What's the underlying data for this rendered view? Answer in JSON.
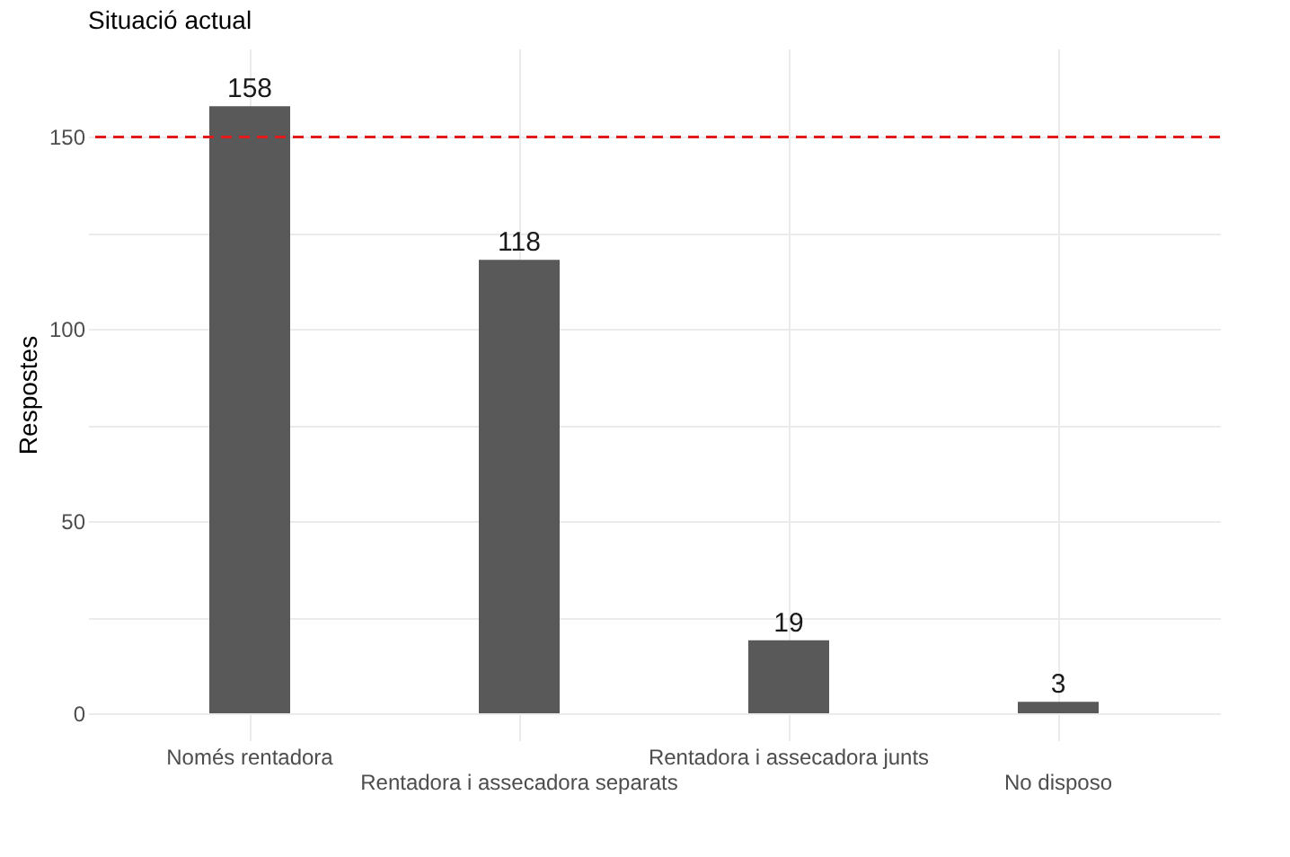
{
  "chart_data": {
    "type": "bar",
    "title": "Situació actual",
    "ylabel": "Respostes",
    "categories": [
      "Només rentadora",
      "Rentadora i assecadora separats",
      "Rentadora i assecadora junts",
      "No disposo"
    ],
    "values": [
      158,
      118,
      19,
      3
    ],
    "color": "#595959",
    "data_labels": true,
    "ylim": [
      -7,
      173
    ],
    "yticks": [
      0,
      {
        "value": 25,
        "label": null
      },
      50,
      {
        "value": 75,
        "label": null
      },
      100,
      {
        "value": 125,
        "label": null
      },
      150
    ],
    "grid": true,
    "ref_lines": [
      {
        "axis": "y",
        "value": 150,
        "color": "#e31a1c",
        "line_style": "dashed"
      }
    ]
  }
}
